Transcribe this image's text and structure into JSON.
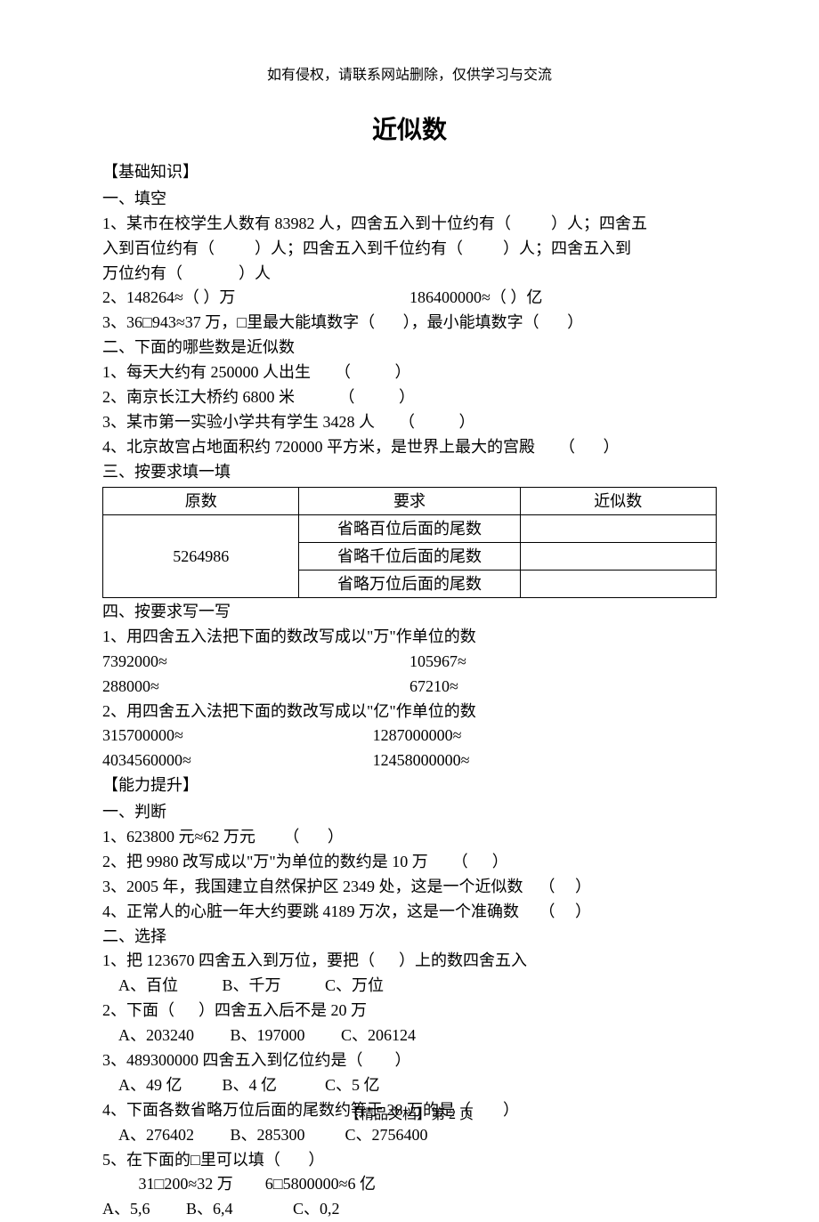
{
  "header_note": "如有侵权，请联系网站删除，仅供学习与交流",
  "title": "近似数",
  "s1_header": "【基础知识】",
  "s1_p1_heading": "一、填空",
  "s1_p1_l1": "1、某市在校学生人数有 83982 人，四舍五入到十位约有（          ）人；四舍五",
  "s1_p1_l2": "入到百位约有（          ）人；四舍五入到千位约有（          ）人；四舍五入到",
  "s1_p1_l3": "万位约有（              ）人",
  "s1_p1_l4a": "2、148264≈（         ）万",
  "s1_p1_l4b": "186400000≈（        ）亿",
  "s1_p1_l5": "3、36□943≈37 万，□里最大能填数字（       ），最小能填数字（       ）",
  "s1_p2_heading": "二、下面的哪些数是近似数",
  "s1_p2_l1": "1、每天大约有 250000 人出生      （           ）",
  "s1_p2_l2": "2、南京长江大桥约 6800 米           （           ）",
  "s1_p2_l3": "3、某市第一实验小学共有学生 3428 人      （           ）",
  "s1_p2_l4": "4、北京故宫占地面积约 720000 平方米，是世界上最大的宫殿      （       ）",
  "s1_p3_heading": "三、按要求填一填",
  "table": {
    "header": [
      "原数",
      "要求",
      "近似数"
    ],
    "num": "5264986",
    "rows": [
      "省略百位后面的尾数",
      "省略千位后面的尾数",
      "省略万位后面的尾数"
    ]
  },
  "s1_p4_heading": "四、按要求写一写",
  "s1_p4_l1": "1、用四舍五入法把下面的数改写成以\"万\"作单位的数",
  "s1_p4_r1a": "7392000≈",
  "s1_p4_r1b": "105967≈",
  "s1_p4_r2a": "288000≈",
  "s1_p4_r2b": "67210≈",
  "s1_p4_l2": "2、用四舍五入法把下面的数改写成以\"亿\"作单位的数",
  "s1_p4_r3a": "315700000≈",
  "s1_p4_r3b": "1287000000≈",
  "s1_p4_r4a": "4034560000≈",
  "s1_p4_r4b": "12458000000≈",
  "s2_header": "【能力提升】",
  "s2_p1_heading": "一、判断",
  "s2_p1_l1": "1、623800 元≈62 万元       （       ）",
  "s2_p1_l2": "2、把 9980 改写成以\"万\"为单位的数约是 10 万      （      ）",
  "s2_p1_l3": "3、2005 年，我国建立自然保护区 2349 处，这是一个近似数    （     ）",
  "s2_p1_l4": "4、正常人的心脏一年大约要跳 4189 万次，这是一个准确数     （     ）",
  "s2_p2_heading": "二、选择",
  "s2_p2_q1": "1、把 123670 四舍五入到万位，要把（      ）上的数四舍五入",
  "s2_p2_q1o": "    A、百位           B、千万           C、万位",
  "s2_p2_q2": "2、下面（      ）四舍五入后不是 20 万",
  "s2_p2_q2o": "    A、203240         B、197000         C、206124",
  "s2_p2_q3": "3、489300000 四舍五入到亿位约是（        ）",
  "s2_p2_q3o": "    A、49 亿          B、4 亿            C、5 亿",
  "s2_p2_q4": "4、下面各数省略万位后面的尾数约等于 28 万的是（        ）",
  "s2_p2_q4o": "    A、276402         B、285300          C、2756400",
  "s2_p2_q5": "5、在下面的□里可以填（       ）",
  "s2_p2_q5a": "         31□200≈32 万        6□5800000≈6 亿",
  "s2_p2_q5o": "A、5,6         B、6,4               C、0,2",
  "footer": "【精品文档】第 2 页"
}
